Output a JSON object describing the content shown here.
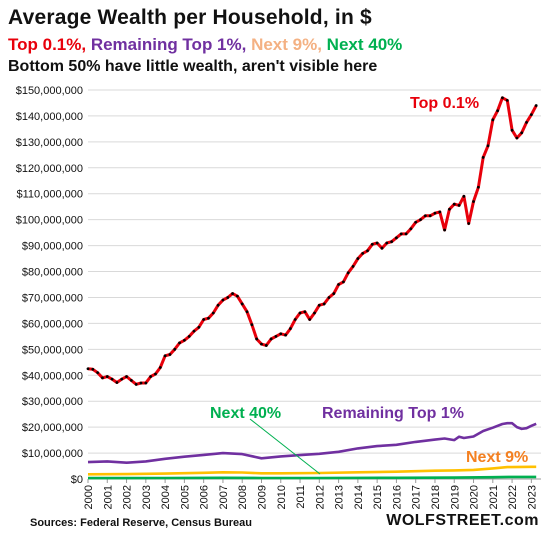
{
  "title": "Average Wealth per Household, in $",
  "legend": {
    "top01": {
      "label": "Top 0.1%,",
      "color": "#e8000b"
    },
    "remaining1": {
      "label": "Remaining Top 1%,",
      "color": "#7030a0"
    },
    "next9": {
      "label": "Next 9%,",
      "color": "#f4b183"
    },
    "next40": {
      "label": "Next 40%",
      "color": "#00b050"
    }
  },
  "subtitle": "Bottom 50% have little wealth, aren't visible here",
  "source": "Sources: Federal Reserve, Census Bureau",
  "brand": "WOLFSTREET.com",
  "chart_data": {
    "type": "line",
    "ylim": [
      0,
      150000000
    ],
    "yticks": [
      {
        "value": 0,
        "label": "$0"
      },
      {
        "value": 10000000,
        "label": "$10,000,000"
      },
      {
        "value": 20000000,
        "label": "$20,000,000"
      },
      {
        "value": 30000000,
        "label": "$30,000,000"
      },
      {
        "value": 40000000,
        "label": "$40,000,000"
      },
      {
        "value": 50000000,
        "label": "$50,000,000"
      },
      {
        "value": 60000000,
        "label": "$60,000,000"
      },
      {
        "value": 70000000,
        "label": "$70,000,000"
      },
      {
        "value": 80000000,
        "label": "$80,000,000"
      },
      {
        "value": 90000000,
        "label": "$90,000,000"
      },
      {
        "value": 100000000,
        "label": "$100,000,000"
      },
      {
        "value": 110000000,
        "label": "$110,000,000"
      },
      {
        "value": 120000000,
        "label": "$120,000,000"
      },
      {
        "value": 130000000,
        "label": "$130,000,000"
      },
      {
        "value": 140000000,
        "label": "$140,000,000"
      },
      {
        "value": 150000000,
        "label": "$150,000,000"
      }
    ],
    "xlim": [
      2000,
      2023.5
    ],
    "xticks": [
      "2000",
      "2001",
      "2002",
      "2003",
      "2004",
      "2005",
      "2006",
      "2007",
      "2008",
      "2009",
      "2010",
      "2011",
      "2012",
      "2013",
      "2014",
      "2015",
      "2016",
      "2017",
      "2018",
      "2019",
      "2020",
      "2021",
      "2022",
      "2023"
    ],
    "grid": "horizontal",
    "series": [
      {
        "name": "Top 0.1%",
        "color": "#e8000b",
        "x": [
          2000,
          2000.25,
          2000.5,
          2000.75,
          2001,
          2001.25,
          2001.5,
          2001.75,
          2002,
          2002.25,
          2002.5,
          2002.75,
          2003,
          2003.25,
          2003.5,
          2003.75,
          2004,
          2004.25,
          2004.5,
          2004.75,
          2005,
          2005.25,
          2005.5,
          2005.75,
          2006,
          2006.25,
          2006.5,
          2006.75,
          2007,
          2007.25,
          2007.5,
          2007.75,
          2008,
          2008.25,
          2008.5,
          2008.75,
          2009,
          2009.25,
          2009.5,
          2009.75,
          2010,
          2010.25,
          2010.5,
          2010.75,
          2011,
          2011.25,
          2011.5,
          2011.75,
          2012,
          2012.25,
          2012.5,
          2012.75,
          2013,
          2013.25,
          2013.5,
          2013.75,
          2014,
          2014.25,
          2014.5,
          2014.75,
          2015,
          2015.25,
          2015.5,
          2015.75,
          2016,
          2016.25,
          2016.5,
          2016.75,
          2017,
          2017.25,
          2017.5,
          2017.75,
          2018,
          2018.25,
          2018.5,
          2018.75,
          2019,
          2019.25,
          2019.5,
          2019.75,
          2020,
          2020.25,
          2020.5,
          2020.75,
          2021,
          2021.25,
          2021.5,
          2021.75,
          2022,
          2022.25,
          2022.5,
          2022.75,
          2023,
          2023.25
        ],
        "values": [
          42.5,
          42.3,
          41,
          39,
          39.5,
          38.5,
          37.2,
          38.5,
          39.5,
          38,
          36.5,
          37,
          37,
          39.5,
          40.5,
          43,
          47.5,
          48,
          50,
          52.5,
          53.5,
          55,
          57,
          58.5,
          61.5,
          62,
          64,
          67,
          69,
          70,
          71.5,
          70.5,
          67.5,
          64.5,
          59.5,
          54,
          52,
          51.5,
          54,
          55,
          56,
          55.5,
          58,
          61.5,
          64,
          64.5,
          61.5,
          64,
          67,
          67.5,
          70,
          71.5,
          75,
          76,
          79.5,
          82,
          85,
          87,
          88,
          90.5,
          91,
          89,
          91,
          91.5,
          93,
          94.5,
          94.5,
          96.5,
          99,
          100,
          101.5,
          101.5,
          102.5,
          103,
          96,
          104,
          106,
          105.5,
          109,
          98.5,
          107,
          112.5,
          124,
          128.5,
          138.5,
          142,
          147,
          146,
          134.5,
          131.5,
          133.5,
          137.5,
          140.5,
          144
        ]
      },
      {
        "name": "Remaining Top 1%",
        "color": "#7030a0",
        "x": [
          2000,
          2001,
          2002,
          2003,
          2004,
          2005,
          2006,
          2007,
          2008,
          2009,
          2010,
          2011,
          2012,
          2013,
          2014,
          2015,
          2016,
          2017,
          2018,
          2018.5,
          2019,
          2019.25,
          2019.5,
          2020,
          2020.5,
          2021,
          2021.5,
          2021.75,
          2022,
          2022.25,
          2022.5,
          2022.75,
          2023,
          2023.25
        ],
        "values": [
          6.5,
          6.8,
          6.3,
          6.8,
          7.8,
          8.6,
          9.3,
          10,
          9.6,
          8,
          8.7,
          9.2,
          9.7,
          10.5,
          11.8,
          12.7,
          13.2,
          14.3,
          15.2,
          15.6,
          15,
          16.3,
          15.8,
          16.4,
          18.5,
          19.8,
          21.2,
          21.5,
          21.5,
          20,
          19.3,
          19.6,
          20.5,
          21.3
        ]
      },
      {
        "name": "Next 9%",
        "color": "#ffc000",
        "x": [
          2000,
          2002,
          2004,
          2006,
          2007,
          2008,
          2009,
          2010,
          2012,
          2014,
          2016,
          2017,
          2018,
          2019,
          2020,
          2021,
          2021.75,
          2022,
          2023,
          2023.25
        ],
        "values": [
          1.8,
          1.9,
          2.1,
          2.4,
          2.6,
          2.5,
          2.2,
          2.2,
          2.3,
          2.6,
          2.8,
          3.0,
          3.2,
          3.3,
          3.5,
          4.1,
          4.6,
          4.6,
          4.7,
          4.7
        ]
      },
      {
        "name": "Next 40%",
        "color": "#00b050",
        "x": [
          2000,
          2004,
          2007,
          2009,
          2012,
          2016,
          2019,
          2021,
          2022,
          2023.25
        ],
        "values": [
          0.35,
          0.4,
          0.45,
          0.38,
          0.38,
          0.45,
          0.55,
          0.7,
          0.8,
          0.8
        ]
      }
    ],
    "annotations": [
      {
        "text": "Top 0.1%",
        "color": "#e8000b"
      },
      {
        "text": "Remaining Top 1%",
        "color": "#7030a0"
      },
      {
        "text": "Next 9%",
        "color": "#f48020"
      },
      {
        "text": "Next 40%",
        "color": "#00b050"
      }
    ]
  }
}
